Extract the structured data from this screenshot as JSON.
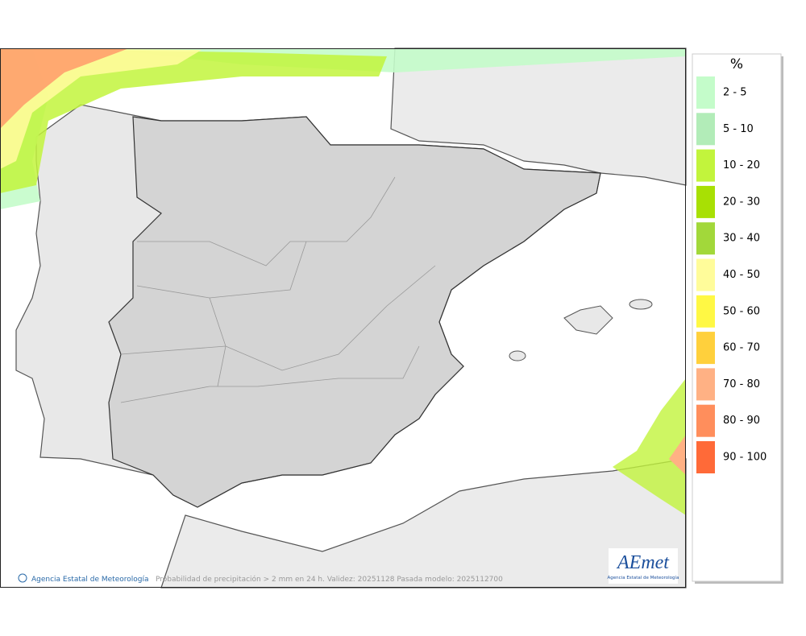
{
  "legend": {
    "title": "%",
    "items": [
      {
        "label": "2 - 5",
        "color": "#c4fcca"
      },
      {
        "label": "5 - 10",
        "color": "#b2ecb8"
      },
      {
        "label": "10 - 20",
        "color": "#c2f43c"
      },
      {
        "label": "20 - 30",
        "color": "#a8e004"
      },
      {
        "label": "30 - 40",
        "color": "#a2d83a"
      },
      {
        "label": "40 - 50",
        "color": "#fffc9a"
      },
      {
        "label": "50 - 60",
        "color": "#fff844"
      },
      {
        "label": "60 - 70",
        "color": "#ffd03c"
      },
      {
        "label": "70 - 80",
        "color": "#ffb184"
      },
      {
        "label": "80 - 90",
        "color": "#ff8e5c"
      },
      {
        "label": "90 - 100",
        "color": "#ff6a38"
      }
    ]
  },
  "footer": {
    "credit": "Agencia Estatal de Meteorología",
    "caption": "Probabilidad de precipitación > 2 mm en 24 h. Validez: 20251128 Pasada modelo: 2025112700"
  },
  "logo": {
    "name": "AEmet",
    "subtitle": "Agencia Estatal de Meteorología"
  }
}
